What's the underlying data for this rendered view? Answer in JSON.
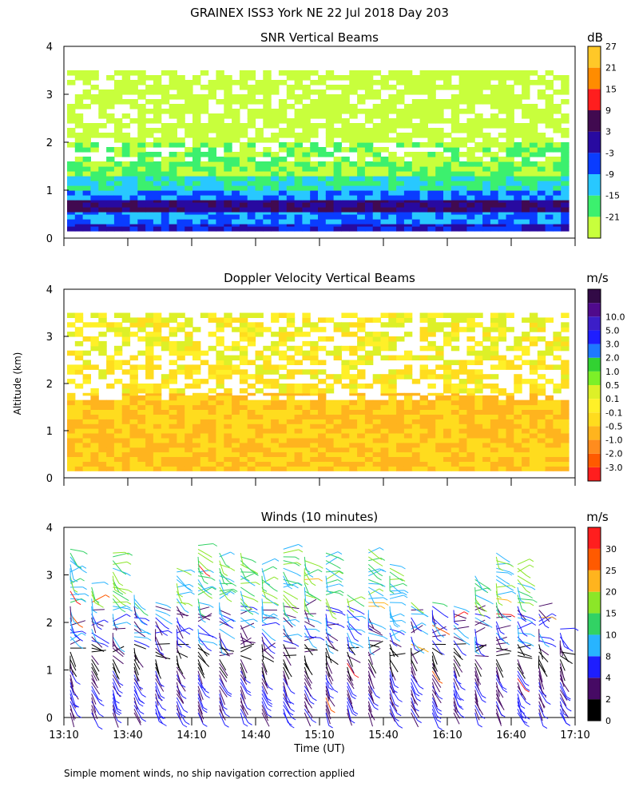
{
  "title": "GRAINEX ISS3 York NE  22 Jul 2018 Day 203",
  "footnote": "Simple moment winds, no ship navigation correction applied",
  "ylabel": "Altitude (km)",
  "xlabel": "Time (UT)",
  "colors": {
    "snr": [
      "#c8ff3c",
      "#3cf06e",
      "#28c8ff",
      "#0a3cff",
      "#280aa0",
      "#410a50",
      "#ff1e1e",
      "#ff8c00",
      "#ffc828"
    ],
    "vel": [
      "#ff1e1e",
      "#ff5a00",
      "#ff8c1e",
      "#ffb41e",
      "#ffdc1e",
      "#fff028",
      "#ddf028",
      "#7cf028",
      "#32d232",
      "#1e78ff",
      "#1e1eff",
      "#3c1ec8",
      "#500a8c",
      "#320a46"
    ],
    "wind": [
      "#000000",
      "#460a64",
      "#1e1eff",
      "#28b4ff",
      "#32d264",
      "#8ce628",
      "#ffb41e",
      "#ff5a00",
      "#ff1e1e"
    ]
  },
  "chart_data": [
    {
      "type": "heatmap",
      "title": "SNR Vertical Beams",
      "ylabel": "Altitude (km)",
      "ylim": [
        0,
        4
      ],
      "yticks": [
        "0",
        "1",
        "2",
        "3",
        "4"
      ],
      "xlim": [
        "13:10",
        "17:10"
      ],
      "colorbar": {
        "unit": "dB",
        "labels": [
          "-21",
          "-15",
          "-9",
          "-3",
          "3",
          "9",
          "15",
          "21",
          "27"
        ]
      },
      "layers": [
        {
          "alt_km": [
            0.15,
            0.3
          ],
          "snr_db": 3
        },
        {
          "alt_km": [
            0.3,
            0.55
          ],
          "snr_db": -3
        },
        {
          "alt_km": [
            0.55,
            0.8
          ],
          "snr_db": 9
        },
        {
          "alt_km": [
            0.8,
            1.0
          ],
          "snr_db": -3
        },
        {
          "alt_km": [
            1.0,
            1.3
          ],
          "snr_db": -9
        },
        {
          "alt_km": [
            1.3,
            2.0
          ],
          "snr_db": -15
        },
        {
          "alt_km": [
            2.0,
            3.5
          ],
          "snr_db": -21
        }
      ]
    },
    {
      "type": "heatmap",
      "title": "Doppler Velocity Vertical Beams",
      "ylabel": "Altitude (km)",
      "ylim": [
        0,
        4
      ],
      "yticks": [
        "0",
        "1",
        "2",
        "3",
        "4"
      ],
      "xlim": [
        "13:10",
        "17:10"
      ],
      "colorbar": {
        "unit": "m/s",
        "labels": [
          "10.0",
          "5.0",
          "3.0",
          "2.0",
          "1.0",
          "0.5",
          "0.1",
          "-0.1",
          "-0.5",
          "-1.0",
          "-2.0",
          "-3.0"
        ]
      },
      "layers": [
        {
          "alt_km": [
            0.15,
            1.8
          ],
          "velocity_ms": -0.5
        },
        {
          "alt_km": [
            1.8,
            2.6
          ],
          "velocity_ms": -0.1
        },
        {
          "alt_km": [
            2.6,
            3.5
          ],
          "velocity_ms": 0.1
        }
      ]
    },
    {
      "type": "barbs",
      "title": "Winds (10 minutes)",
      "ylabel": "Altitude (km)",
      "xlabel": "Time (UT)",
      "ylim": [
        0,
        4
      ],
      "yticks": [
        "0",
        "1",
        "2",
        "3",
        "4"
      ],
      "xticks": [
        "13:10",
        "13:40",
        "14:10",
        "14:40",
        "15:10",
        "15:40",
        "16:10",
        "16:40",
        "17:10"
      ],
      "colorbar": {
        "unit": "m/s",
        "labels": [
          "0",
          "2",
          "4",
          "8",
          "10",
          "15",
          "20",
          "25",
          "30"
        ]
      },
      "profiles": [
        {
          "time": "13:10",
          "top_km": 3.6
        },
        {
          "time": "13:20",
          "top_km": 2.9
        },
        {
          "time": "13:30",
          "top_km": 3.5
        },
        {
          "time": "13:40",
          "top_km": 2.6
        },
        {
          "time": "13:50",
          "top_km": 2.5
        },
        {
          "time": "14:00",
          "top_km": 3.2
        },
        {
          "time": "14:10",
          "top_km": 3.7
        },
        {
          "time": "14:20",
          "top_km": 3.5
        },
        {
          "time": "14:30",
          "top_km": 3.5
        },
        {
          "time": "14:40",
          "top_km": 3.3
        },
        {
          "time": "14:50",
          "top_km": 3.6
        },
        {
          "time": "15:00",
          "top_km": 3.4
        },
        {
          "time": "15:10",
          "top_km": 3.5
        },
        {
          "time": "15:20",
          "top_km": 2.6
        },
        {
          "time": "15:30",
          "top_km": 3.6
        },
        {
          "time": "15:40",
          "top_km": 3.3
        },
        {
          "time": "15:50",
          "top_km": 2.5
        },
        {
          "time": "16:00",
          "top_km": 2.5
        },
        {
          "time": "16:10",
          "top_km": 2.4
        },
        {
          "time": "16:20",
          "top_km": 3.0
        },
        {
          "time": "16:30",
          "top_km": 3.5
        },
        {
          "time": "16:40",
          "top_km": 3.3
        },
        {
          "time": "16:50",
          "top_km": 2.4
        },
        {
          "time": "17:00",
          "top_km": 1.9
        }
      ]
    }
  ]
}
